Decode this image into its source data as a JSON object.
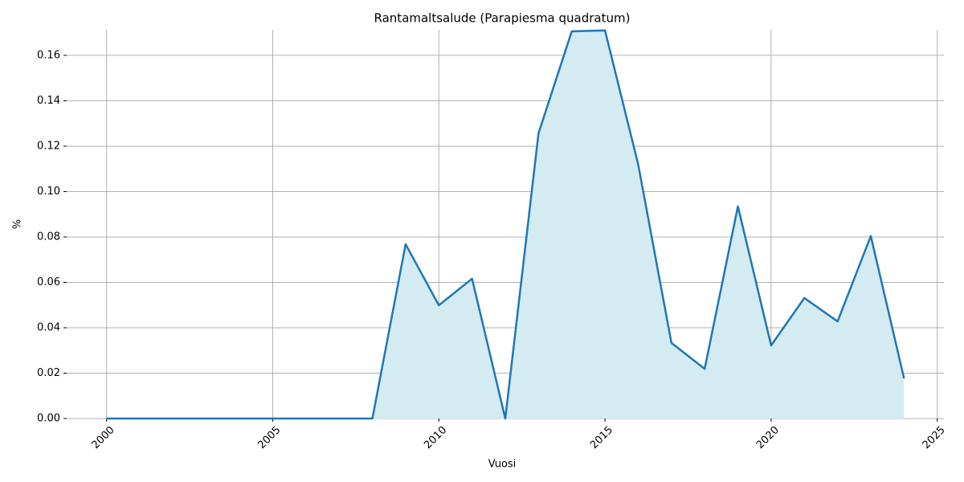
{
  "chart_data": {
    "type": "line",
    "title": "Rantamaltsalude (Parapiesma quadratum)",
    "x_label": "Vuosi",
    "y_label": "%",
    "x": [
      2000,
      2001,
      2002,
      2003,
      2004,
      2005,
      2006,
      2007,
      2008,
      2009,
      2010,
      2011,
      2012,
      2013,
      2014,
      2015,
      2016,
      2017,
      2018,
      2019,
      2020,
      2021,
      2022,
      2023,
      2024
    ],
    "values": [
      0,
      0,
      0,
      0,
      0,
      0,
      0,
      0,
      0,
      0.0768,
      0.0499,
      0.0616,
      0,
      0.1257,
      0.1706,
      0.171,
      0.1119,
      0.0333,
      0.0219,
      0.0935,
      0.0322,
      0.0531,
      0.0428,
      0.0804,
      0.0177
    ],
    "color": "#1f77b4",
    "fill_color": "#d4ebf2",
    "xlim": [
      1998.8,
      2025.2
    ],
    "xticks": [
      2000,
      2005,
      2010,
      2015,
      2020,
      2025
    ],
    "ylim": [
      0,
      0.1713
    ],
    "yticks": [
      {
        "value": 0,
        "label": "0.00"
      },
      {
        "value": 0.02,
        "label": "0.02"
      },
      {
        "value": 0.04,
        "label": "0.04"
      },
      {
        "value": 0.06,
        "label": "0.06"
      },
      {
        "value": 0.08,
        "label": "0.08"
      },
      {
        "value": 0.1,
        "label": "0.10"
      },
      {
        "value": 0.12,
        "label": "0.12"
      },
      {
        "value": 0.14,
        "label": "0.14"
      },
      {
        "value": 0.16,
        "label": "0.16"
      }
    ],
    "grid": true
  }
}
